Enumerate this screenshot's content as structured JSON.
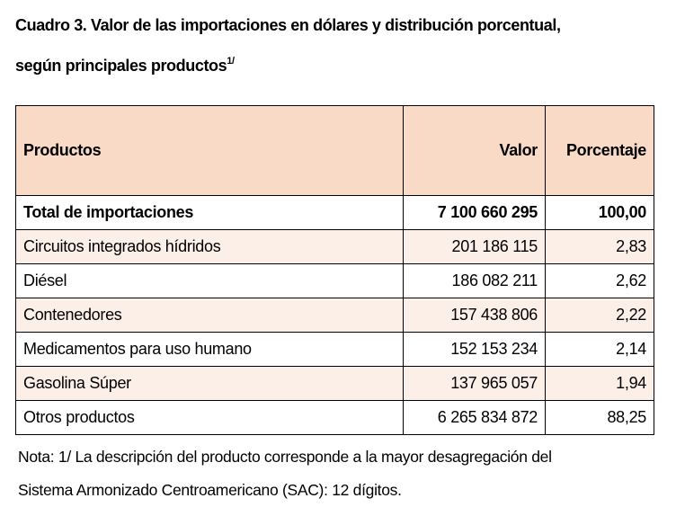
{
  "header": {
    "title_lines": [
      "Cuadro 3. Valor de las importaciones en dólares y distribución porcentual,",
      "según principales productos"
    ],
    "title_note": "1/"
  },
  "table": {
    "columns": [
      "Productos",
      "Valor",
      "Porcentaje"
    ],
    "rows": [
      [
        "Total de importaciones",
        "7 100 660 295",
        "100,00"
      ],
      [
        "Circuitos integrados hídridos",
        "201 186 115",
        "2,83"
      ],
      [
        "Diésel",
        "186 082 211",
        "2,62"
      ],
      [
        "Contenedores",
        "157 438 806",
        "2,22"
      ],
      [
        "Medicamentos para uso humano",
        "152 153 234",
        "2,14"
      ],
      [
        "Gasolina Súper",
        "137 965 057",
        "1,94"
      ],
      [
        "Otros productos",
        "6 265 834 872",
        "88,25"
      ]
    ]
  },
  "note": {
    "lines": [
      "Nota: 1/ La descripción del producto corresponde a la mayor desagregación del",
      "Sistema Armonizado Centroamericano (SAC): 12 dígitos."
    ]
  }
}
